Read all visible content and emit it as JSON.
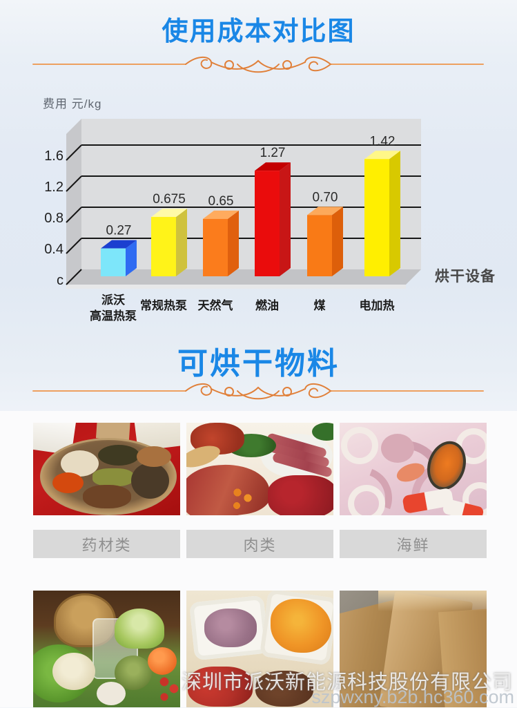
{
  "header": {
    "title": "使用成本对比图"
  },
  "chart_data": {
    "type": "bar",
    "style": "3d-column",
    "title": "使用成本对比图",
    "axis_label_left": "费用 元/kg",
    "axis_label_right": "烘干设备",
    "categories": [
      [
        "派沃",
        "高温热泵"
      ],
      [
        "常规热泵"
      ],
      [
        "天然气"
      ],
      [
        "燃油"
      ],
      [
        "煤"
      ],
      [
        "电加热"
      ]
    ],
    "values": [
      0.27,
      0.675,
      0.65,
      1.27,
      0.7,
      1.42
    ],
    "value_labels": [
      "0.27",
      "0.675",
      "0.65",
      "1.27",
      "0.70",
      "1.42"
    ],
    "yticks": [
      {
        "label": "1.6",
        "value": 1.6
      },
      {
        "label": "1.2",
        "value": 1.2
      },
      {
        "label": "0.8",
        "value": 0.8
      },
      {
        "label": "0.4",
        "value": 0.4
      },
      {
        "label": "c",
        "value": 0
      }
    ],
    "ylim": [
      0,
      1.92
    ],
    "grid": true,
    "legend": false,
    "bar_colors": [
      {
        "front": "#7de6fa",
        "top": "#1b3fd0",
        "side": "#2f6bf2"
      },
      {
        "front": "#fff319",
        "top": "#fffaa8",
        "side": "#cfc23d"
      },
      {
        "front": "#fb7c1c",
        "top": "#ffab5e",
        "side": "#e0600e"
      },
      {
        "front": "#ea0c0c",
        "top": "#c40000",
        "side": "#c81616"
      },
      {
        "front": "#f97a16",
        "top": "#fca95b",
        "side": "#dd5f0a"
      },
      {
        "front": "#ffef00",
        "top": "#fff788",
        "side": "#d8c900"
      }
    ]
  },
  "materials": {
    "title": "可烘干物料",
    "labels": [
      "药材类",
      "肉类",
      "海鲜"
    ],
    "photos_row1": [
      "herbs-platter-photo",
      "cured-meats-photo",
      "seafood-mix-photo"
    ],
    "photos_row2": [
      "fresh-vegetables-photo",
      "dried-fruits-photo",
      "dried-slabs-photo"
    ]
  },
  "watermark": {
    "company": "深圳市派沃新能源科技股份有限公司",
    "site": "szpwxny.b2b.hc360.com"
  },
  "colors": {
    "accent_blue": "#1a87e6",
    "divider_orange": "#e0803a",
    "chart_wall": "#dcdddf",
    "label_bar_gray": "#d9d9d9"
  }
}
